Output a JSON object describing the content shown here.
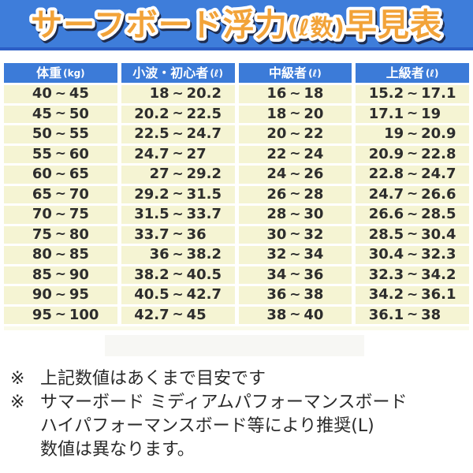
{
  "banner": {
    "title_main": "サーフボード浮力",
    "title_paren": "(ℓ数)",
    "title_suffix": "早見表",
    "bg_color": "#3e7dda",
    "border_color": "#2c5ec6",
    "title_fill": "#f2a339",
    "title_outline": "#ffffff",
    "title_shadow": "#1e2c4e"
  },
  "table": {
    "headers": [
      {
        "label": "体重",
        "unit": "(kg)"
      },
      {
        "label": "小波・初心者",
        "unit": "(ℓ)"
      },
      {
        "label": "中級者",
        "unit": "(ℓ)"
      },
      {
        "label": "上級者",
        "unit": "(ℓ)"
      }
    ],
    "header_bg": "#3c7bd8",
    "row_bg": "#f5f4d3",
    "text_color": "#2d2d2d"
  },
  "notes": [
    {
      "marker": "※",
      "lines": [
        "上記数値はあくまで目安です"
      ]
    },
    {
      "marker": "※",
      "lines": [
        "サマーボード ミディアムパフォーマンスボード",
        "ハイパフォーマンスボード等により推奨(L)",
        "数値は異なります。"
      ]
    }
  ],
  "chart_data": {
    "type": "table",
    "title": "サーフボード浮力(ℓ数)早見表",
    "columns": [
      "体重(kg)",
      "小波・初心者(ℓ)",
      "中級者(ℓ)",
      "上級者(ℓ)"
    ],
    "column_keys": [
      "weight",
      "beginner",
      "intermediate",
      "advanced"
    ],
    "range_separator": "~",
    "rows": [
      [
        [
          "40",
          "45"
        ],
        [
          "18",
          "20.2"
        ],
        [
          "16",
          "18"
        ],
        [
          "15.2",
          "17.1"
        ]
      ],
      [
        [
          "45",
          "50"
        ],
        [
          "20.2",
          "22.5"
        ],
        [
          "18",
          "20"
        ],
        [
          "17.1",
          "19"
        ]
      ],
      [
        [
          "50",
          "55"
        ],
        [
          "22.5",
          "24.7"
        ],
        [
          "20",
          "22"
        ],
        [
          "19",
          "20.9"
        ]
      ],
      [
        [
          "55",
          "60"
        ],
        [
          "24.7",
          "27"
        ],
        [
          "22",
          "24"
        ],
        [
          "20.9",
          "22.8"
        ]
      ],
      [
        [
          "60",
          "65"
        ],
        [
          "27",
          "29.2"
        ],
        [
          "24",
          "26"
        ],
        [
          "22.8",
          "24.7"
        ]
      ],
      [
        [
          "65",
          "70"
        ],
        [
          "29.2",
          "31.5"
        ],
        [
          "26",
          "28"
        ],
        [
          "24.7",
          "26.6"
        ]
      ],
      [
        [
          "70",
          "75"
        ],
        [
          "31.5",
          "33.7"
        ],
        [
          "28",
          "30"
        ],
        [
          "26.6",
          "28.5"
        ]
      ],
      [
        [
          "75",
          "80"
        ],
        [
          "33.7",
          "36"
        ],
        [
          "30",
          "32"
        ],
        [
          "28.5",
          "30.4"
        ]
      ],
      [
        [
          "80",
          "85"
        ],
        [
          "36",
          "38.2"
        ],
        [
          "32",
          "34"
        ],
        [
          "30.4",
          "32.3"
        ]
      ],
      [
        [
          "85",
          "90"
        ],
        [
          "38.2",
          "40.5"
        ],
        [
          "34",
          "36"
        ],
        [
          "32.3",
          "34.2"
        ]
      ],
      [
        [
          "90",
          "95"
        ],
        [
          "40.5",
          "42.7"
        ],
        [
          "36",
          "38"
        ],
        [
          "34.2",
          "36.1"
        ]
      ],
      [
        [
          "95",
          "100"
        ],
        [
          "42.7",
          "45"
        ],
        [
          "38",
          "40"
        ],
        [
          "36.1",
          "38"
        ]
      ]
    ]
  }
}
